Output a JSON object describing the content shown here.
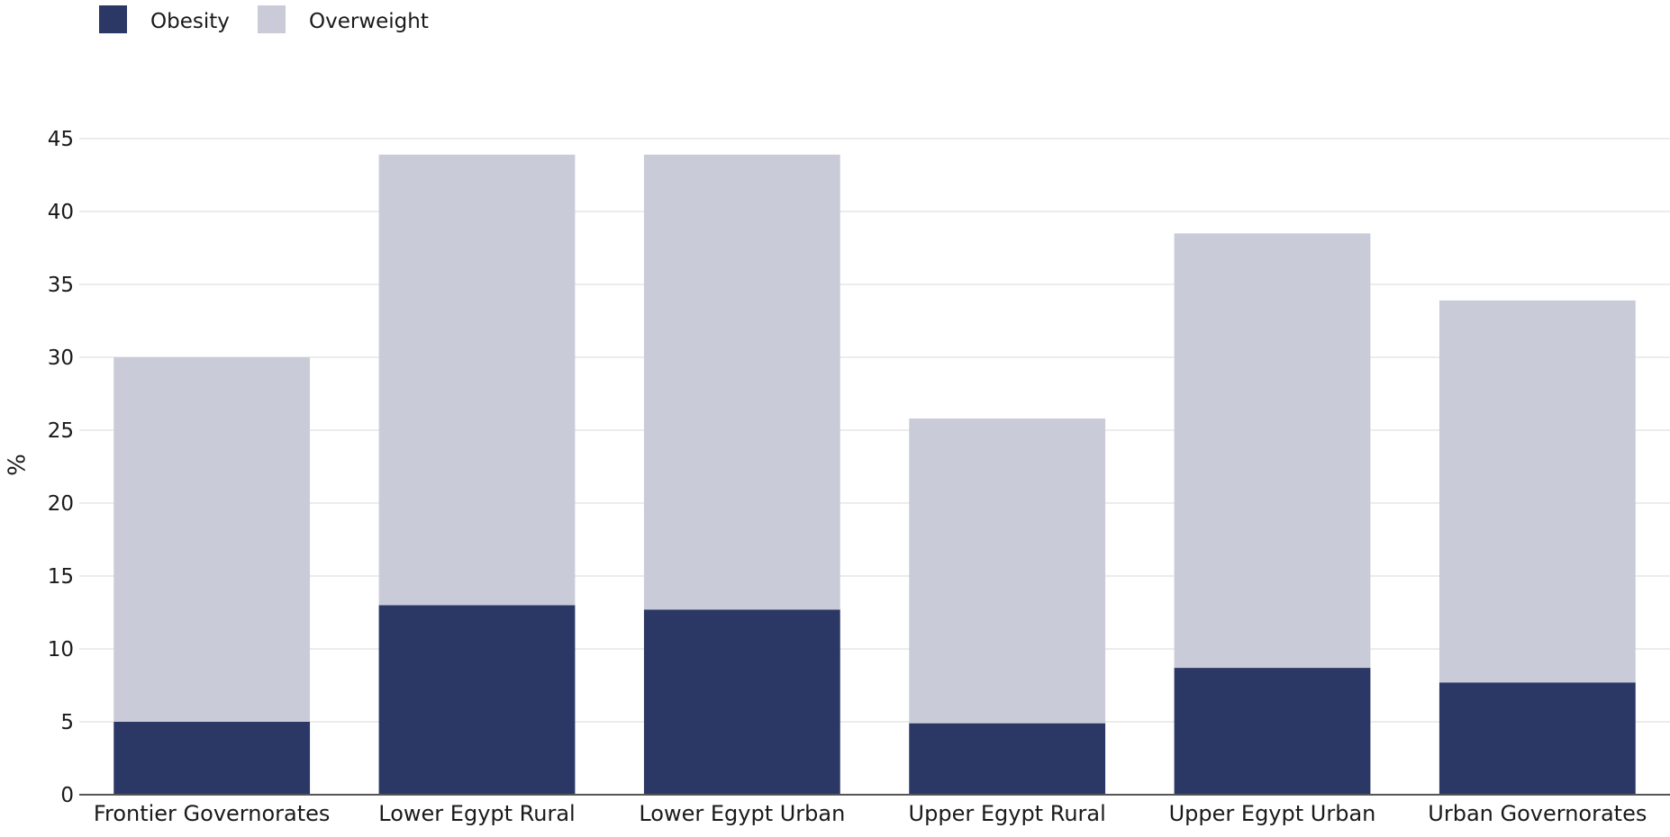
{
  "chart_data": {
    "type": "bar",
    "stacked": true,
    "categories": [
      "Frontier Governorates",
      "Lower Egypt Rural",
      "Lower Egypt Urban",
      "Upper Egypt Rural",
      "Upper Egypt Urban",
      "Urban Governorates"
    ],
    "series": [
      {
        "name": "Obesity",
        "color": "#2b3865",
        "values": [
          5.0,
          13.0,
          12.7,
          4.9,
          8.7,
          7.7
        ]
      },
      {
        "name": "Overweight",
        "color": "#c9ccd8",
        "values": [
          25.0,
          30.9,
          31.2,
          20.9,
          29.8,
          26.2
        ]
      }
    ],
    "title": "",
    "xlabel": "",
    "ylabel": "%",
    "ylim": [
      0,
      45
    ],
    "yticks": [
      0,
      5,
      10,
      15,
      20,
      25,
      30,
      35,
      40,
      45
    ],
    "grid": true,
    "legend": "top-left"
  }
}
